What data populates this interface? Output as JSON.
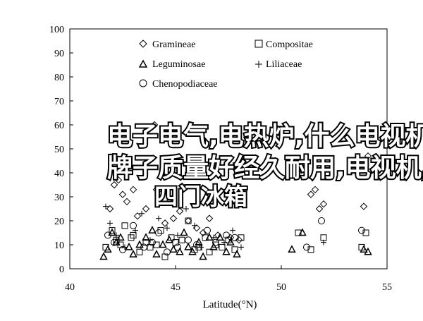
{
  "chart_data": {
    "type": "scatter",
    "title": "",
    "xlabel": "Latitude(°N)",
    "ylabel": "",
    "xlim": [
      40,
      55
    ],
    "ylim": [
      0,
      100
    ],
    "x_ticks": [
      40,
      45,
      50,
      55
    ],
    "y_ticks": [
      0,
      10,
      20,
      30,
      40,
      50,
      60,
      70,
      80,
      90,
      100
    ],
    "grid": false,
    "legend_position": "top-left",
    "series": [
      {
        "name": "Gramineae",
        "marker": "diamond",
        "points": [
          [
            41.9,
            25
          ],
          [
            42.1,
            35
          ],
          [
            42.3,
            37
          ],
          [
            42.5,
            31
          ],
          [
            42.7,
            28
          ],
          [
            43.0,
            33
          ],
          [
            43.2,
            22
          ],
          [
            43.6,
            25
          ],
          [
            44.0,
            60
          ],
          [
            44.1,
            33
          ],
          [
            44.3,
            31
          ],
          [
            44.5,
            19
          ],
          [
            44.7,
            28
          ],
          [
            44.9,
            21
          ],
          [
            45.2,
            24
          ],
          [
            45.6,
            20
          ],
          [
            46.0,
            17
          ],
          [
            46.3,
            15
          ],
          [
            46.6,
            21
          ],
          [
            47.0,
            14
          ],
          [
            47.6,
            13
          ],
          [
            48.0,
            12
          ],
          [
            51.4,
            31
          ],
          [
            51.6,
            33
          ],
          [
            51.8,
            25
          ],
          [
            52.0,
            27
          ],
          [
            53.9,
            26
          ],
          [
            54.1,
            47
          ]
        ]
      },
      {
        "name": "Compositae",
        "marker": "square",
        "points": [
          [
            41.7,
            9
          ],
          [
            42.0,
            16
          ],
          [
            42.2,
            12
          ],
          [
            42.4,
            10
          ],
          [
            42.6,
            18
          ],
          [
            42.9,
            13
          ],
          [
            43.0,
            14
          ],
          [
            43.3,
            7
          ],
          [
            43.6,
            11
          ],
          [
            43.8,
            9
          ],
          [
            44.1,
            10
          ],
          [
            44.3,
            16
          ],
          [
            44.5,
            5
          ],
          [
            44.8,
            13
          ],
          [
            45.0,
            11
          ],
          [
            45.3,
            12
          ],
          [
            45.6,
            20
          ],
          [
            45.9,
            8
          ],
          [
            46.1,
            9
          ],
          [
            46.4,
            13
          ],
          [
            46.6,
            7
          ],
          [
            46.9,
            10
          ],
          [
            47.2,
            9
          ],
          [
            47.5,
            12
          ],
          [
            47.8,
            8
          ],
          [
            48.1,
            13
          ],
          [
            50.8,
            15
          ],
          [
            51.4,
            8
          ],
          [
            52.0,
            13
          ],
          [
            53.8,
            9
          ],
          [
            54.0,
            15
          ]
        ]
      },
      {
        "name": "Leguminosae",
        "marker": "triangle",
        "points": [
          [
            41.6,
            5
          ],
          [
            41.8,
            8
          ],
          [
            42.0,
            15
          ],
          [
            42.2,
            11
          ],
          [
            42.4,
            13
          ],
          [
            42.8,
            9
          ],
          [
            43.0,
            6
          ],
          [
            43.3,
            10
          ],
          [
            43.6,
            13
          ],
          [
            43.9,
            16
          ],
          [
            44.1,
            6
          ],
          [
            44.4,
            10
          ],
          [
            44.7,
            12
          ],
          [
            44.9,
            8
          ],
          [
            45.2,
            7
          ],
          [
            45.4,
            15
          ],
          [
            45.6,
            9
          ],
          [
            45.8,
            7
          ],
          [
            46.1,
            11
          ],
          [
            46.3,
            5
          ],
          [
            46.6,
            13
          ],
          [
            46.8,
            9
          ],
          [
            47.1,
            13
          ],
          [
            47.4,
            7
          ],
          [
            47.6,
            11
          ],
          [
            47.9,
            6
          ],
          [
            50.5,
            8
          ],
          [
            51.0,
            15
          ],
          [
            53.9,
            8
          ],
          [
            54.1,
            7
          ]
        ]
      },
      {
        "name": "Liliaceae",
        "marker": "plus",
        "points": [
          [
            41.7,
            26
          ],
          [
            41.9,
            19
          ],
          [
            42.2,
            14
          ],
          [
            42.6,
            9
          ],
          [
            43.1,
            16
          ],
          [
            43.4,
            23
          ],
          [
            43.8,
            12
          ],
          [
            44.2,
            21
          ],
          [
            44.6,
            17
          ],
          [
            45.1,
            14
          ],
          [
            45.5,
            25
          ],
          [
            45.9,
            18
          ],
          [
            46.2,
            9
          ],
          [
            46.8,
            13
          ],
          [
            47.3,
            11
          ],
          [
            47.7,
            16
          ],
          [
            48.1,
            9
          ],
          [
            52.0,
            11
          ]
        ]
      },
      {
        "name": "Chenopodiaceae",
        "marker": "circle",
        "points": [
          [
            41.8,
            14
          ],
          [
            42.1,
            11
          ],
          [
            42.5,
            8
          ],
          [
            43.0,
            18
          ],
          [
            43.5,
            9
          ],
          [
            43.9,
            11
          ],
          [
            44.2,
            15
          ],
          [
            44.6,
            7
          ],
          [
            45.1,
            9
          ],
          [
            45.6,
            12
          ],
          [
            46.0,
            10
          ],
          [
            46.5,
            16
          ],
          [
            46.9,
            11
          ],
          [
            47.4,
            14
          ],
          [
            47.8,
            13
          ],
          [
            51.2,
            9
          ],
          [
            51.9,
            20
          ],
          [
            53.8,
            16
          ]
        ]
      }
    ]
  },
  "overlay": {
    "line1": "电子电气,电热炉,什么电视机",
    "line2": "牌子质量好经久耐用,电视机,",
    "line3": "四门冰箱"
  }
}
